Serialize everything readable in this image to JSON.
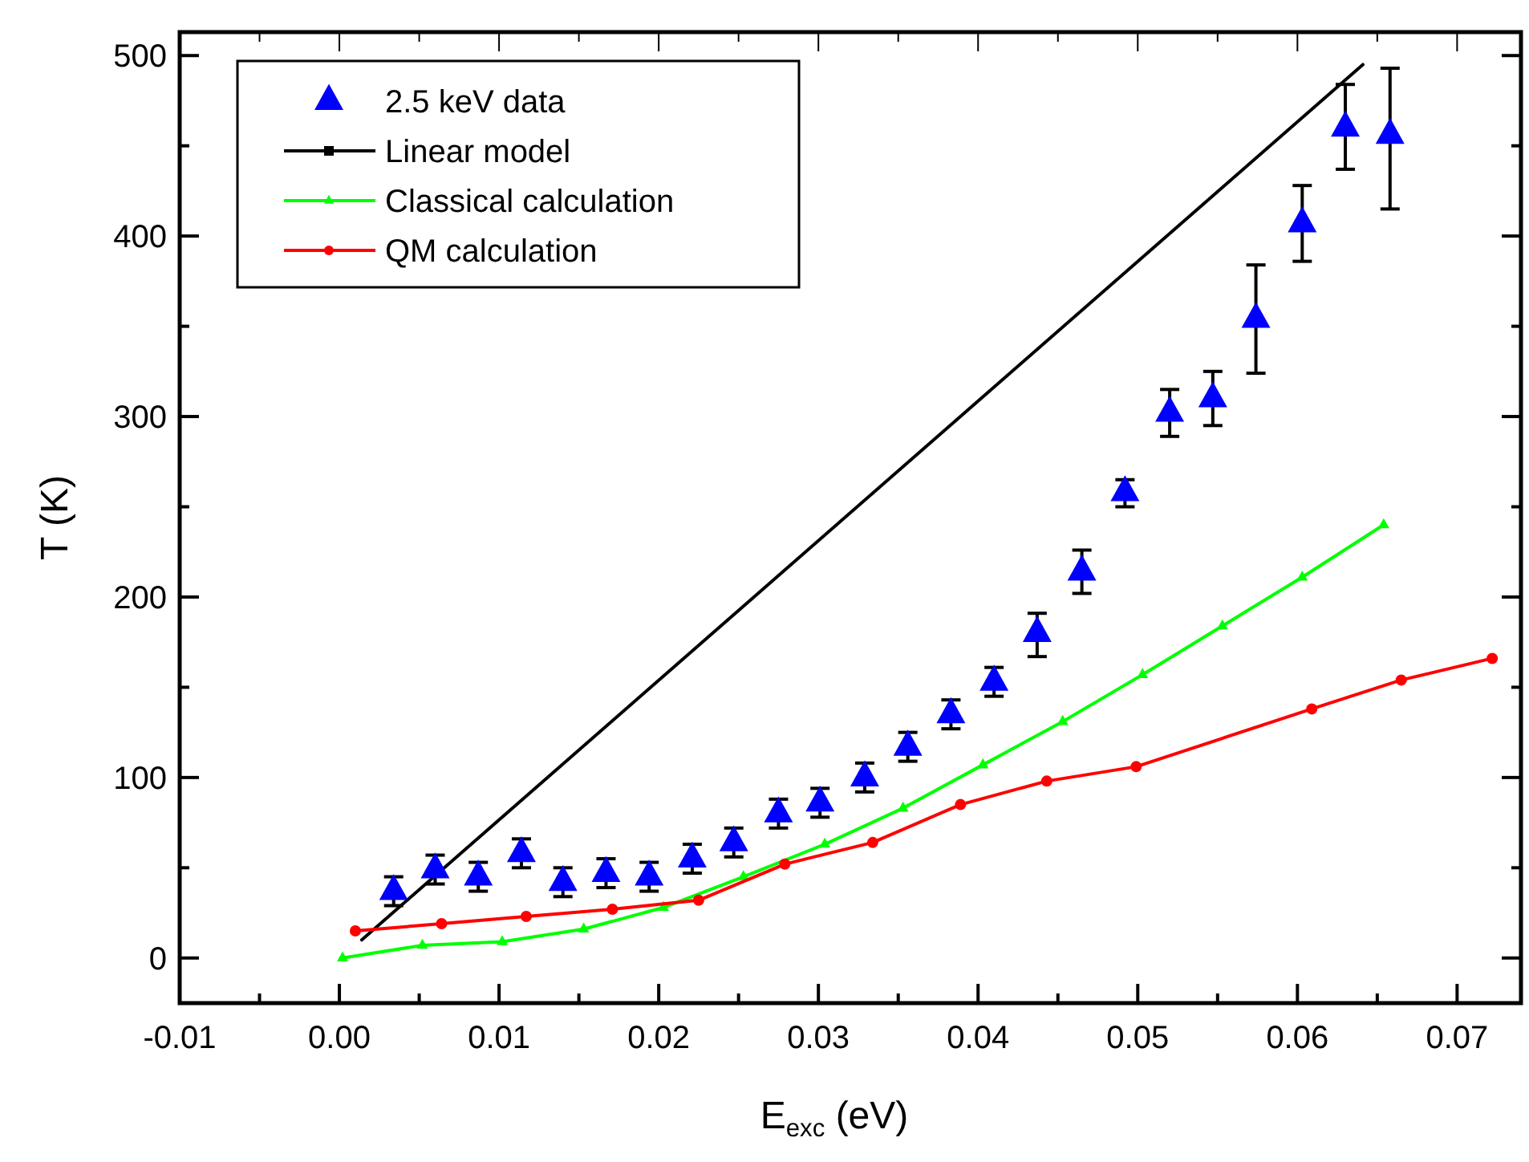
{
  "chart_data": {
    "type": "line",
    "xlabel": "E$_{exc}$ (eV)",
    "ylabel": "T (K)",
    "xlim": [
      -0.01,
      0.074
    ],
    "ylim": [
      -25,
      513
    ],
    "xticks": [
      -0.01,
      {
        "value": -0.005,
        "label": null
      },
      "0.00",
      {
        "value": 0.005,
        "label": null
      },
      0.01,
      {
        "value": 0.015,
        "label": null
      },
      0.02,
      {
        "value": 0.025,
        "label": null
      },
      0.03,
      {
        "value": 0.035,
        "label": null
      },
      0.04,
      {
        "value": 0.045,
        "label": null
      },
      0.05,
      {
        "value": 0.055,
        "label": null
      },
      0.06,
      {
        "value": 0.065,
        "label": null
      },
      0.07
    ],
    "yticks": [
      0,
      {
        "value": 50,
        "label": null
      },
      100,
      {
        "value": 150,
        "label": null
      },
      200,
      {
        "value": 250,
        "label": null
      },
      300,
      {
        "value": 350,
        "label": null
      },
      400,
      {
        "value": 450,
        "label": null
      },
      500
    ],
    "grid": false,
    "legend": "top left",
    "series": [
      {
        "name": "2.5 keV data",
        "type": "scatter",
        "marker": "triangle",
        "color": "#0000ff",
        "x": [
          0.0034,
          0.006,
          0.0087,
          0.0114,
          0.014,
          0.0167,
          0.0194,
          0.0221,
          0.0247,
          0.0275,
          0.0301,
          0.0329,
          0.0356,
          0.0383,
          0.041,
          0.0437,
          0.0465,
          0.0492,
          0.052,
          0.0547,
          0.0574,
          0.0603,
          0.063,
          0.0658
        ],
        "values": [
          37,
          49,
          45,
          58,
          42,
          47,
          45,
          55,
          64,
          80,
          86,
          100,
          117,
          135,
          153,
          180,
          214,
          258,
          302,
          310,
          354,
          407,
          460,
          456
        ],
        "errors": [
          8,
          8,
          8,
          8,
          8,
          8,
          8,
          8,
          8,
          8,
          8,
          8,
          8,
          8,
          8,
          [
            167,
            191
          ],
          [
            202,
            226
          ],
          [
            250,
            265
          ],
          [
            289,
            315
          ],
          [
            295,
            325
          ],
          [
            324,
            384
          ],
          [
            386,
            428
          ],
          [
            437,
            484
          ],
          [
            415,
            493
          ]
        ]
      },
      {
        "name": "Linear model",
        "marker": "none",
        "color": "#000000",
        "x": [
          0.0014,
          0.0641
        ],
        "values": [
          10,
          495
        ]
      },
      {
        "name": "Classical calculation",
        "marker": "triangle",
        "color": "#00ff00",
        "x": [
          0.0002,
          0.0052,
          0.0102,
          0.0153,
          0.0203,
          0.0253,
          0.0304,
          0.0353,
          0.0403,
          0.0453,
          0.0503,
          0.0553,
          0.0603,
          0.0654
        ],
        "values": [
          0,
          7,
          9,
          16,
          28,
          45,
          63,
          83,
          107,
          131,
          157,
          184,
          211,
          240
        ]
      },
      {
        "name": "QM calculation",
        "marker": "circle",
        "color": "#ff0000",
        "x": [
          0.001,
          0.0064,
          0.0117,
          0.0171,
          0.0225,
          0.0279,
          0.0334,
          0.0389,
          0.0443,
          0.0499,
          0.0609,
          0.0665,
          0.0722
        ],
        "values": [
          15,
          19,
          23,
          27,
          32,
          52,
          64,
          85,
          98,
          106,
          138,
          154,
          166
        ]
      }
    ]
  }
}
